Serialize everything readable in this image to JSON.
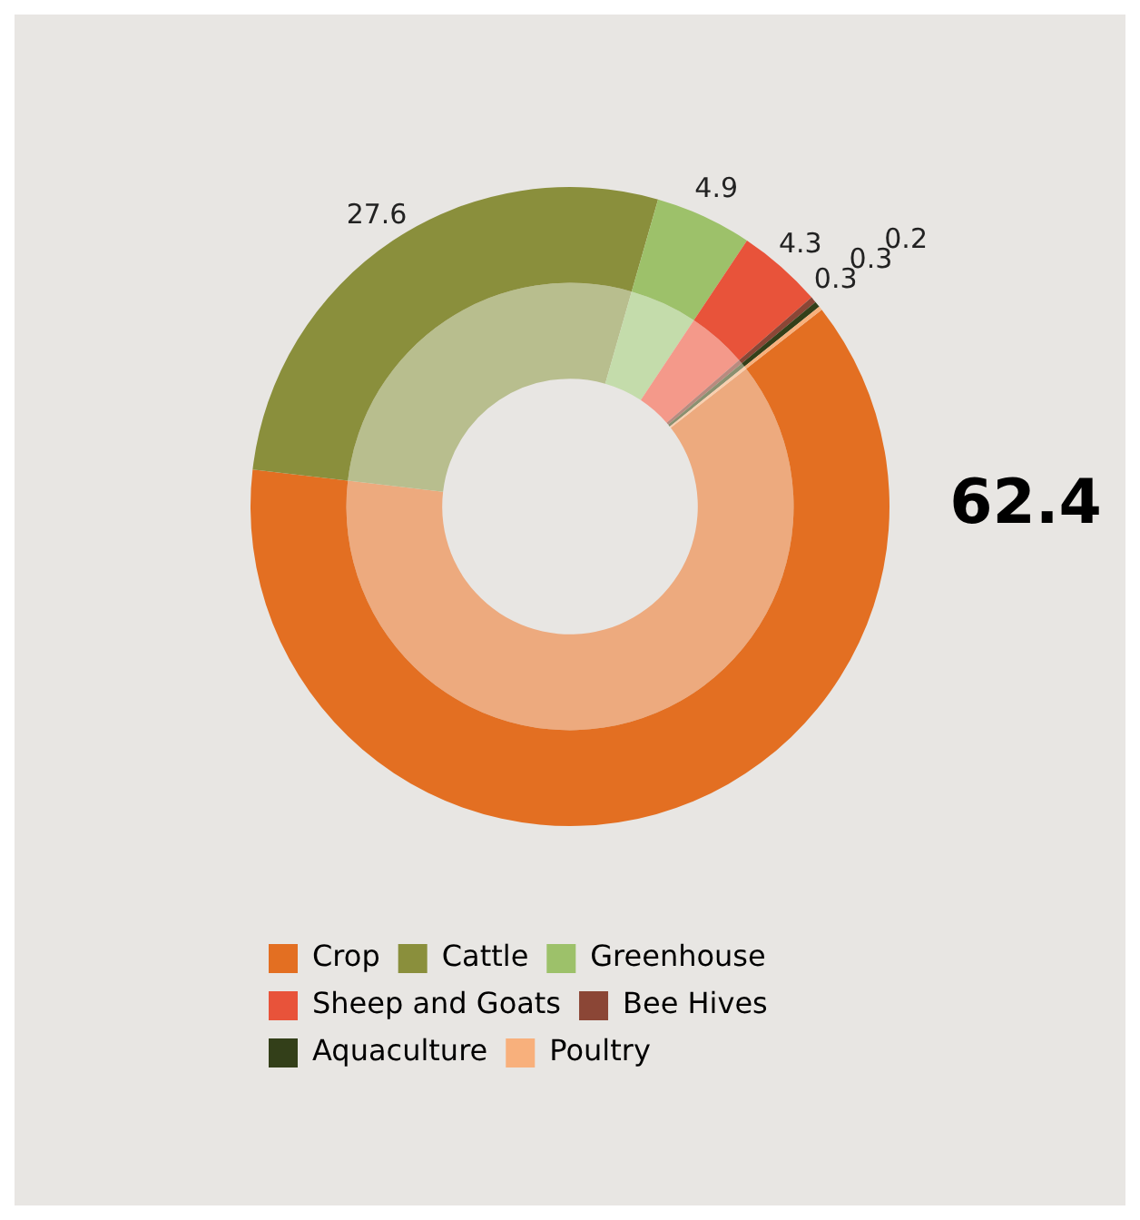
{
  "chart_data": {
    "type": "donut",
    "categories": [
      "Crop",
      "Cattle",
      "Greenhouse",
      "Sheep and Goats",
      "Bee Hives",
      "Aquaculture",
      "Poultry"
    ],
    "series": [
      {
        "values": [
          62.4,
          27.6,
          4.9,
          4.3,
          0.3,
          0.3,
          0.2
        ],
        "colors": [
          "#edaa7e",
          "#b8be8e",
          "#c4dcab",
          "#f4998a",
          "#b98a7f",
          "#8a9070",
          "#f9cfae"
        ]
      },
      {
        "values": [
          62.4,
          27.6,
          4.9,
          4.3,
          0.3,
          0.3,
          0.2
        ],
        "colors": [
          "#e36f22",
          "#8a8f3c",
          "#9dc16a",
          "#e8533a",
          "#8b4636",
          "#333f19",
          "#f8b07c"
        ],
        "value_labels": [
          "62.4",
          "27.6",
          "4.9",
          "4.3",
          "0.3",
          "0.3",
          "0.2"
        ]
      }
    ],
    "legend": "bottom"
  }
}
